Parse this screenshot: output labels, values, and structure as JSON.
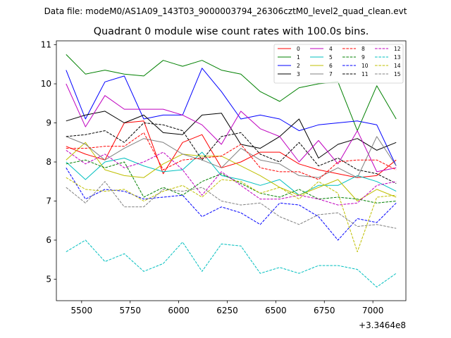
{
  "figure": {
    "suptitle": "Data file: modeM0/AS1A09_143T03_9000003794_26306cztM0_level2_quad_clean.evt"
  },
  "chart_data": {
    "type": "line",
    "title": "Quadrant 0 module wise count rates with 100.0s bins.",
    "xlabel": "",
    "ylabel": "",
    "x_offset_label": "+3.3464e8",
    "xlim": [
      5370,
      7170
    ],
    "ylim": [
      4.45,
      11.1
    ],
    "xticks": [
      5500,
      5750,
      6000,
      6250,
      6500,
      6750,
      7000
    ],
    "yticks": [
      5,
      6,
      7,
      8,
      9,
      10,
      11
    ],
    "grid": false,
    "legend_position": "top-right",
    "x": [
      5420,
      5520,
      5620,
      5720,
      5820,
      5920,
      6020,
      6120,
      6220,
      6320,
      6420,
      6520,
      6620,
      6720,
      6820,
      6920,
      7020,
      7120
    ],
    "series": [
      {
        "name": "0",
        "color": "#ff0000",
        "dash": "solid",
        "values": [
          8.4,
          8.2,
          8.05,
          9.0,
          9.05,
          7.7,
          8.5,
          8.7,
          7.85,
          8.0,
          8.25,
          8.25,
          7.95,
          7.8,
          7.7,
          7.6,
          7.65,
          8.05
        ]
      },
      {
        "name": "1",
        "color": "#008000",
        "dash": "solid",
        "values": [
          10.75,
          10.25,
          10.35,
          10.25,
          10.2,
          10.6,
          10.45,
          10.6,
          10.35,
          10.25,
          9.8,
          9.55,
          9.9,
          10.0,
          10.05,
          8.8,
          9.95,
          9.1
        ]
      },
      {
        "name": "2",
        "color": "#0000ff",
        "dash": "solid",
        "values": [
          10.35,
          9.1,
          10.05,
          10.2,
          9.1,
          9.2,
          9.2,
          10.4,
          9.8,
          9.1,
          9.2,
          9.1,
          8.8,
          8.95,
          9.0,
          9.05,
          8.95,
          7.9
        ]
      },
      {
        "name": "3",
        "color": "#000000",
        "dash": "solid",
        "values": [
          9.05,
          9.2,
          9.3,
          9.0,
          9.2,
          8.75,
          8.7,
          9.2,
          9.25,
          8.45,
          8.35,
          8.65,
          9.1,
          8.1,
          8.45,
          8.6,
          8.3,
          8.5
        ]
      },
      {
        "name": "4",
        "color": "#bf00bf",
        "dash": "solid",
        "values": [
          10.0,
          8.9,
          9.7,
          9.35,
          9.35,
          9.35,
          9.2,
          8.95,
          8.45,
          9.3,
          8.85,
          8.65,
          8.0,
          8.55,
          7.95,
          8.8,
          7.75,
          7.85
        ]
      },
      {
        "name": "5",
        "color": "#00bfbf",
        "dash": "solid",
        "values": [
          8.0,
          7.55,
          8.0,
          8.1,
          7.9,
          7.75,
          7.8,
          8.25,
          7.65,
          7.55,
          7.4,
          7.55,
          7.15,
          7.4,
          7.4,
          7.65,
          7.5,
          7.25
        ]
      },
      {
        "name": "6",
        "color": "#bfbf00",
        "dash": "solid",
        "values": [
          8.05,
          8.5,
          7.8,
          7.65,
          7.6,
          7.95,
          8.2,
          8.15,
          8.15,
          7.9,
          7.65,
          7.35,
          7.15,
          7.35,
          7.55,
          7.0,
          7.3,
          7.1
        ]
      },
      {
        "name": "7",
        "color": "#808080",
        "dash": "solid",
        "values": [
          8.65,
          8.45,
          8.05,
          8.35,
          8.6,
          8.5,
          8.2,
          8.05,
          7.85,
          8.35,
          8.05,
          7.95,
          7.65,
          7.6,
          7.85,
          7.6,
          8.65,
          7.9
        ]
      },
      {
        "name": "8",
        "color": "#ff0000",
        "dash": "dashed",
        "values": [
          8.35,
          8.35,
          8.4,
          8.4,
          8.75,
          7.8,
          8.05,
          8.1,
          8.15,
          8.45,
          7.85,
          7.75,
          7.75,
          7.55,
          8.0,
          8.05,
          8.05,
          7.8
        ]
      },
      {
        "name": "9",
        "color": "#008000",
        "dash": "dashed",
        "values": [
          7.95,
          8.05,
          7.85,
          8.0,
          7.1,
          7.35,
          7.15,
          7.5,
          7.7,
          7.45,
          7.2,
          7.1,
          7.3,
          7.05,
          7.1,
          7.05,
          6.95,
          7.0
        ]
      },
      {
        "name": "10",
        "color": "#0000ff",
        "dash": "dashed",
        "values": [
          7.85,
          7.05,
          7.3,
          7.25,
          7.05,
          7.1,
          7.15,
          6.6,
          6.85,
          6.7,
          6.4,
          6.95,
          6.9,
          6.6,
          6.0,
          6.55,
          6.45,
          6.95
        ]
      },
      {
        "name": "11",
        "color": "#000000",
        "dash": "dashed",
        "values": [
          8.65,
          8.7,
          8.8,
          8.5,
          9.0,
          8.95,
          8.8,
          8.05,
          8.65,
          8.75,
          8.2,
          8.0,
          8.5,
          7.9,
          8.1,
          7.8,
          7.7,
          7.45
        ]
      },
      {
        "name": "12",
        "color": "#bf00bf",
        "dash": "dashed",
        "values": [
          8.3,
          7.95,
          8.2,
          7.85,
          8.0,
          8.25,
          7.8,
          7.15,
          7.75,
          7.4,
          7.05,
          7.05,
          7.15,
          7.05,
          6.9,
          6.95,
          7.4,
          7.5
        ]
      },
      {
        "name": "13",
        "color": "#00bfbf",
        "dash": "dashed",
        "values": [
          5.7,
          6.0,
          5.45,
          5.65,
          5.2,
          5.4,
          5.95,
          5.2,
          5.9,
          5.85,
          5.15,
          5.3,
          5.15,
          5.35,
          5.35,
          5.25,
          4.8,
          5.15
        ]
      },
      {
        "name": "14",
        "color": "#bfbf00",
        "dash": "dashed",
        "values": [
          7.6,
          7.3,
          7.25,
          7.3,
          7.0,
          7.25,
          7.4,
          7.1,
          7.55,
          7.5,
          7.2,
          7.35,
          7.05,
          7.5,
          7.2,
          5.7,
          7.1,
          7.15
        ]
      },
      {
        "name": "15",
        "color": "#808080",
        "dash": "dashed",
        "values": [
          7.35,
          6.95,
          7.5,
          6.85,
          6.85,
          7.3,
          7.25,
          7.35,
          7.0,
          6.9,
          6.95,
          6.6,
          6.4,
          6.65,
          6.7,
          6.35,
          6.4,
          6.3
        ]
      }
    ]
  }
}
